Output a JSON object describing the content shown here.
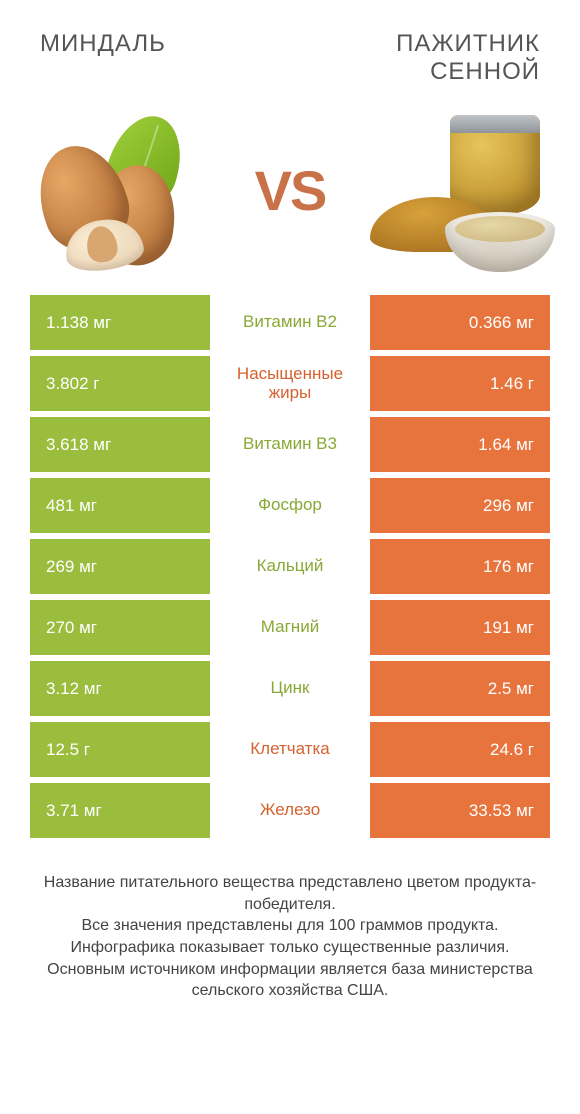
{
  "colors": {
    "left_bar": "#9bbd3e",
    "right_bar": "#e8743d",
    "nutrient_left": "#8aa835",
    "nutrient_right": "#d4622f",
    "vs": "#c9724a",
    "background": "#ffffff"
  },
  "header": {
    "left_title": "МИНДАЛЬ",
    "right_title": "ПАЖИТНИК\nСЕННОЙ",
    "vs_label": "VS"
  },
  "table": {
    "rows": [
      {
        "left": "1.138 мг",
        "nutrient": "Витамин B2",
        "right": "0.366 мг",
        "winner": "left"
      },
      {
        "left": "3.802 г",
        "nutrient": "Насыщенные жиры",
        "right": "1.46 г",
        "winner": "right"
      },
      {
        "left": "3.618 мг",
        "nutrient": "Витамин B3",
        "right": "1.64 мг",
        "winner": "left"
      },
      {
        "left": "481 мг",
        "nutrient": "Фосфор",
        "right": "296 мг",
        "winner": "left"
      },
      {
        "left": "269 мг",
        "nutrient": "Кальций",
        "right": "176 мг",
        "winner": "left"
      },
      {
        "left": "270 мг",
        "nutrient": "Магний",
        "right": "191 мг",
        "winner": "left"
      },
      {
        "left": "3.12 мг",
        "nutrient": "Цинк",
        "right": "2.5 мг",
        "winner": "left"
      },
      {
        "left": "12.5 г",
        "nutrient": "Клетчатка",
        "right": "24.6 г",
        "winner": "right"
      },
      {
        "left": "3.71 мг",
        "nutrient": "Железо",
        "right": "33.53 мг",
        "winner": "right"
      }
    ]
  },
  "footer": {
    "text": "Название питательного вещества представлено цветом продукта-победителя.\nВсе значения представлены для 100 граммов продукта.\nИнфографика показывает только существенные различия.\nОсновным источником информации является база министерства сельского хозяйства США."
  }
}
